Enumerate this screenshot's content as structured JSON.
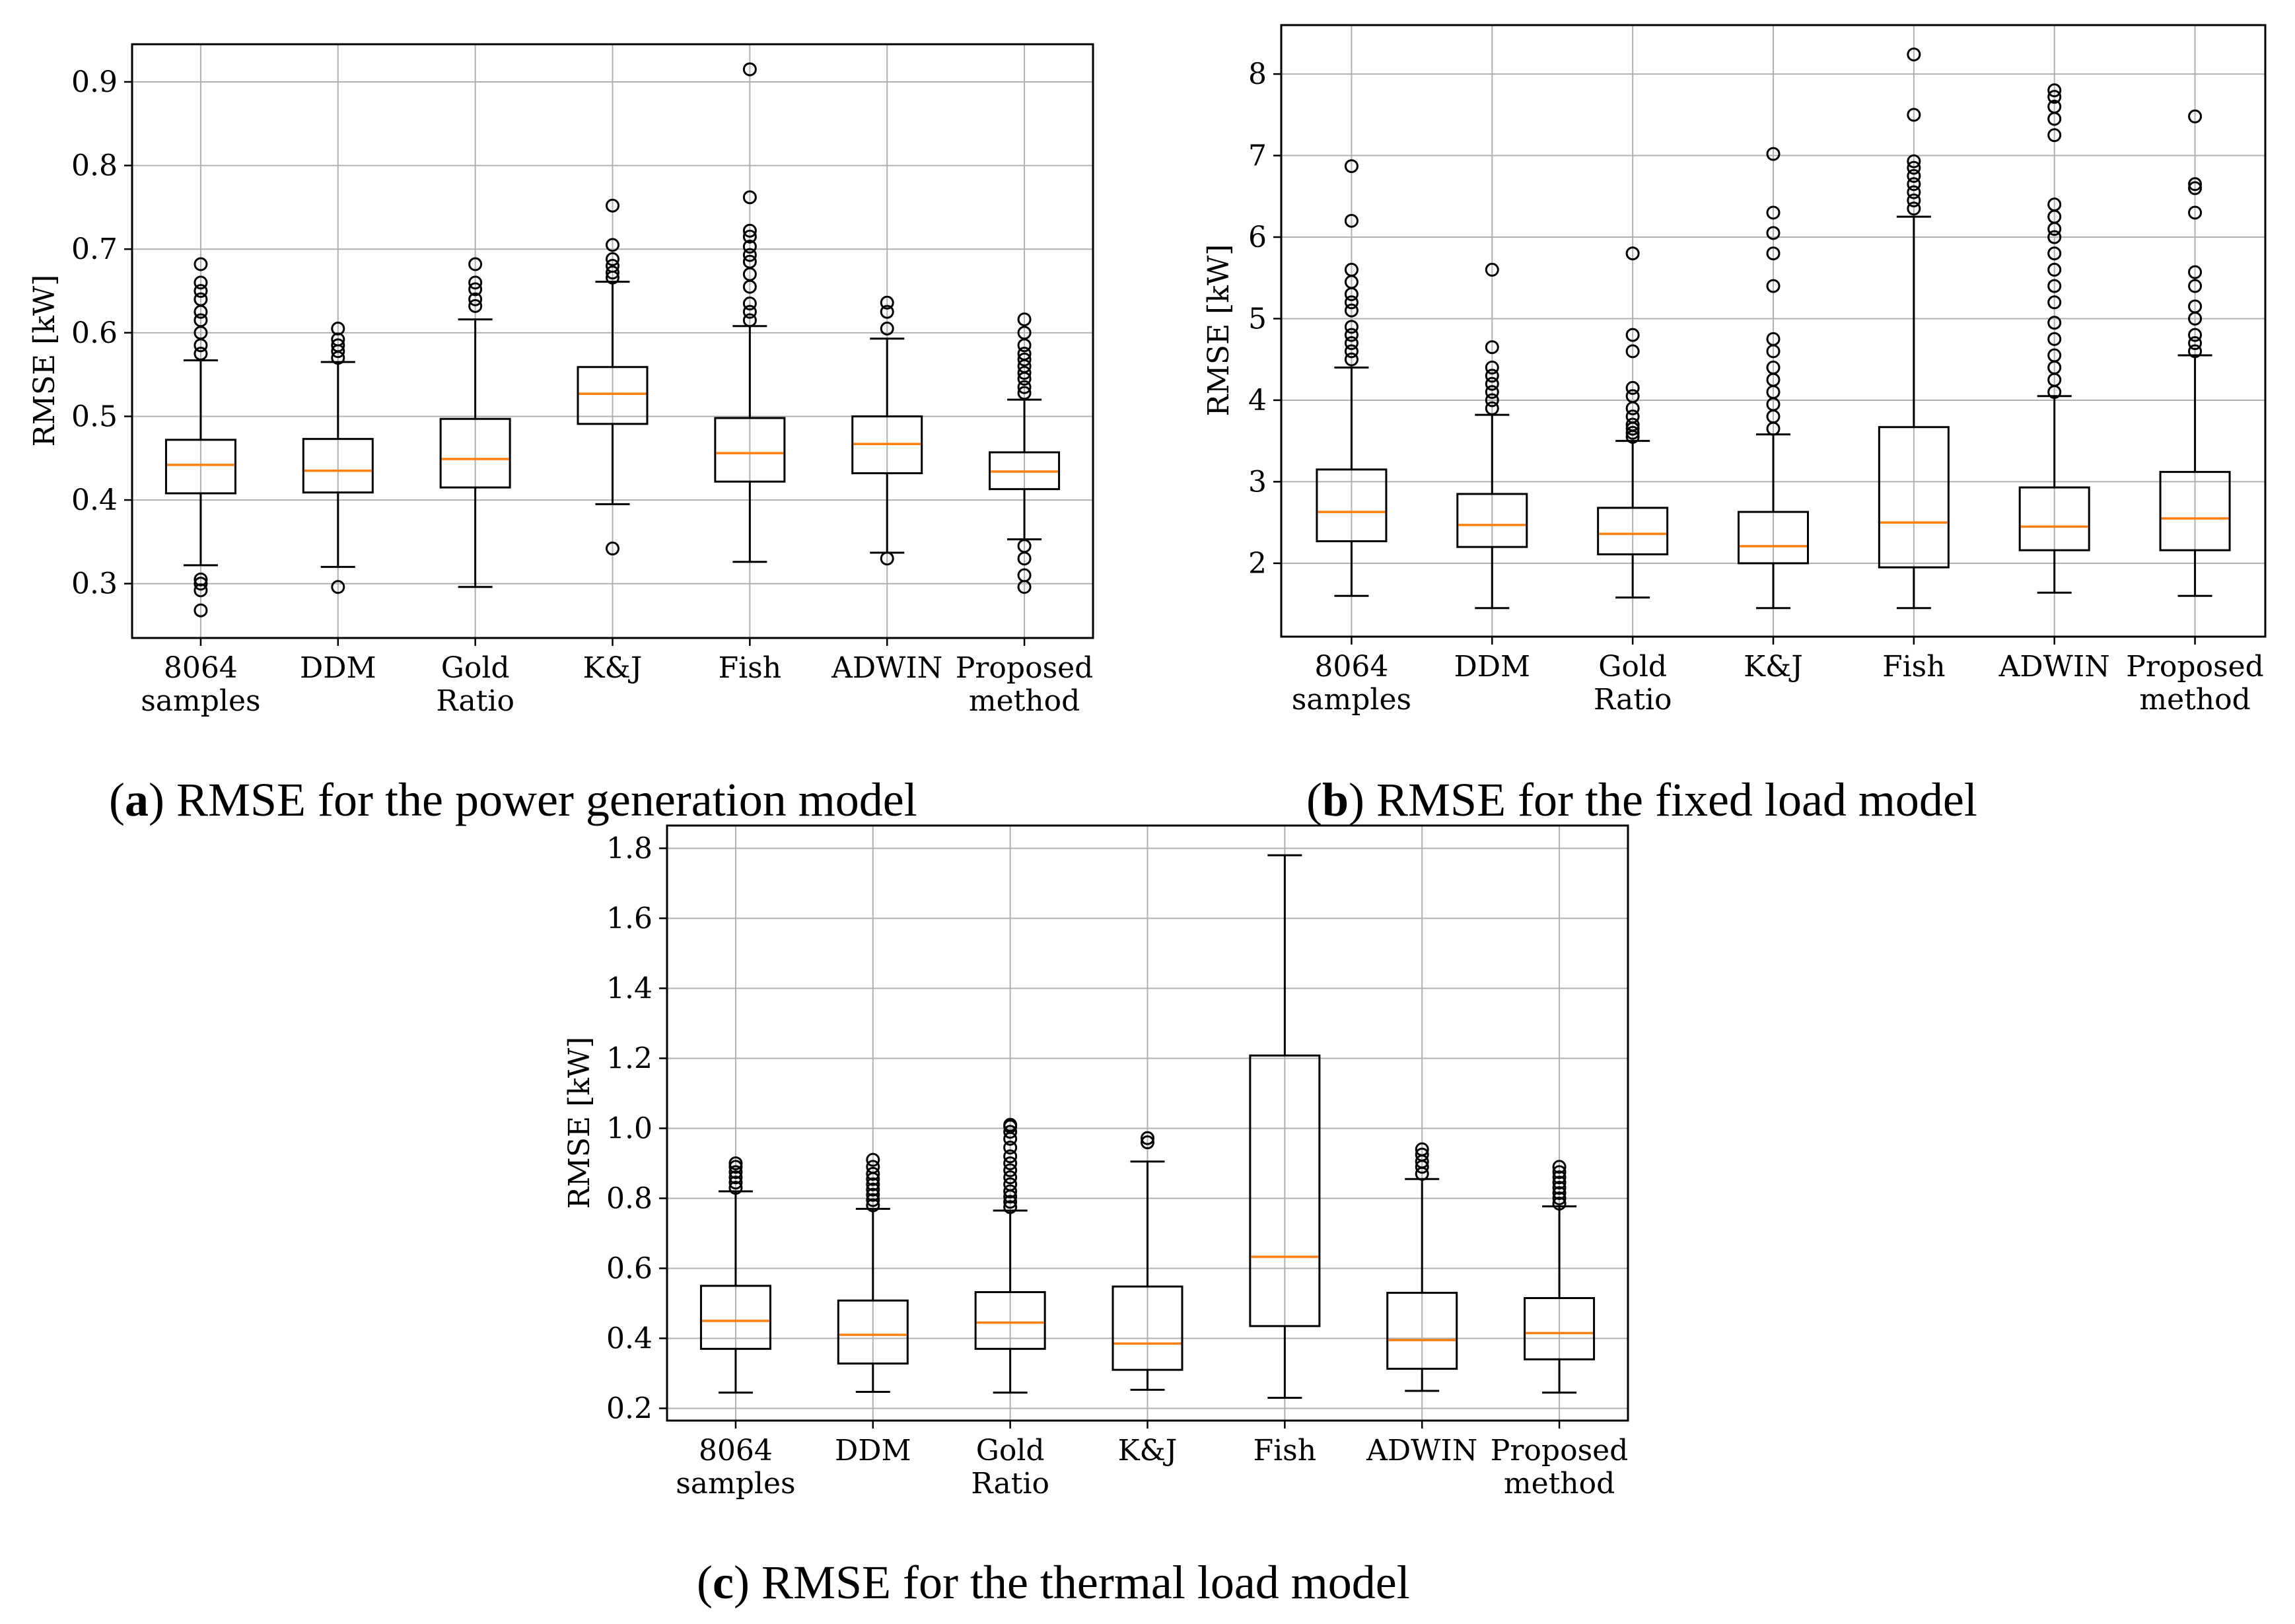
{
  "colors": {
    "median": "#ff7f0e",
    "box": "#000000",
    "grid": "#b0b0b0"
  },
  "chart_data": [
    {
      "type": "box",
      "caption": {
        "letter": "a",
        "text": "RMSE for the power generation model"
      },
      "ylabel": "RMSE [kW]",
      "ylim": [
        0.235,
        0.945
      ],
      "yticks": [
        "0.3",
        "0.4",
        "0.5",
        "0.6",
        "0.7",
        "0.8",
        "0.9"
      ],
      "categories": [
        [
          "8064",
          "samples"
        ],
        [
          "DDM"
        ],
        [
          "Gold",
          "Ratio"
        ],
        [
          "K&J"
        ],
        [
          "Fish"
        ],
        [
          "ADWIN"
        ],
        [
          "Proposed",
          "method"
        ]
      ],
      "series": [
        {
          "whislo": 0.322,
          "q1": 0.408,
          "med": 0.442,
          "q3": 0.472,
          "whishi": 0.567,
          "fliers": [
            0.268,
            0.292,
            0.3,
            0.305,
            0.575,
            0.585,
            0.6,
            0.615,
            0.625,
            0.64,
            0.65,
            0.66,
            0.682
          ]
        },
        {
          "whislo": 0.32,
          "q1": 0.409,
          "med": 0.435,
          "q3": 0.473,
          "whishi": 0.565,
          "fliers": [
            0.296,
            0.57,
            0.578,
            0.585,
            0.592,
            0.605
          ]
        },
        {
          "whislo": 0.296,
          "q1": 0.415,
          "med": 0.449,
          "q3": 0.497,
          "whishi": 0.616,
          "fliers": [
            0.632,
            0.64,
            0.652,
            0.66,
            0.682
          ]
        },
        {
          "whislo": 0.395,
          "q1": 0.491,
          "med": 0.527,
          "q3": 0.559,
          "whishi": 0.661,
          "fliers": [
            0.342,
            0.666,
            0.672,
            0.68,
            0.688,
            0.705,
            0.752
          ]
        },
        {
          "whislo": 0.326,
          "q1": 0.422,
          "med": 0.456,
          "q3": 0.498,
          "whishi": 0.608,
          "fliers": [
            0.615,
            0.625,
            0.635,
            0.655,
            0.67,
            0.685,
            0.693,
            0.703,
            0.715,
            0.722,
            0.762,
            0.915
          ]
        },
        {
          "whislo": 0.337,
          "q1": 0.432,
          "med": 0.467,
          "q3": 0.5,
          "whishi": 0.593,
          "fliers": [
            0.33,
            0.605,
            0.625,
            0.636
          ]
        },
        {
          "whislo": 0.353,
          "q1": 0.413,
          "med": 0.434,
          "q3": 0.457,
          "whishi": 0.52,
          "fliers": [
            0.296,
            0.31,
            0.33,
            0.345,
            0.528,
            0.535,
            0.545,
            0.552,
            0.56,
            0.568,
            0.575,
            0.585,
            0.6,
            0.616
          ]
        }
      ]
    },
    {
      "type": "box",
      "caption": {
        "letter": "b",
        "text": "RMSE for the fixed load model"
      },
      "ylabel": "RMSE [kW]",
      "ylim": [
        1.1,
        8.6
      ],
      "yticks": [
        "2",
        "3",
        "4",
        "5",
        "6",
        "7",
        "8"
      ],
      "categories": [
        [
          "8064",
          "samples"
        ],
        [
          "DDM"
        ],
        [
          "Gold",
          "Ratio"
        ],
        [
          "K&J"
        ],
        [
          "Fish"
        ],
        [
          "ADWIN"
        ],
        [
          "Proposed",
          "method"
        ]
      ],
      "series": [
        {
          "whislo": 1.6,
          "q1": 2.27,
          "med": 2.63,
          "q3": 3.15,
          "whishi": 4.4,
          "fliers": [
            4.5,
            4.6,
            4.7,
            4.8,
            4.9,
            5.1,
            5.2,
            5.3,
            5.45,
            5.6,
            6.2,
            6.87
          ]
        },
        {
          "whislo": 1.45,
          "q1": 2.2,
          "med": 2.47,
          "q3": 2.85,
          "whishi": 3.82,
          "fliers": [
            3.9,
            4.0,
            4.1,
            4.2,
            4.3,
            4.4,
            4.65,
            5.6
          ]
        },
        {
          "whislo": 1.58,
          "q1": 2.11,
          "med": 2.36,
          "q3": 2.68,
          "whishi": 3.5,
          "fliers": [
            3.55,
            3.6,
            3.65,
            3.7,
            3.8,
            3.9,
            4.05,
            4.15,
            4.6,
            4.8,
            5.8
          ]
        },
        {
          "whislo": 1.45,
          "q1": 2.0,
          "med": 2.21,
          "q3": 2.63,
          "whishi": 3.58,
          "fliers": [
            3.65,
            3.8,
            3.95,
            4.1,
            4.25,
            4.4,
            4.6,
            4.75,
            5.4,
            5.8,
            6.05,
            6.3,
            7.02
          ]
        },
        {
          "whislo": 1.45,
          "q1": 1.95,
          "med": 2.5,
          "q3": 3.67,
          "whishi": 6.25,
          "fliers": [
            6.35,
            6.45,
            6.55,
            6.65,
            6.75,
            6.85,
            6.93,
            7.5,
            8.24
          ]
        },
        {
          "whislo": 1.64,
          "q1": 2.16,
          "med": 2.45,
          "q3": 2.93,
          "whishi": 4.05,
          "fliers": [
            4.1,
            4.25,
            4.4,
            4.55,
            4.75,
            4.95,
            5.2,
            5.4,
            5.6,
            5.8,
            6.0,
            6.1,
            6.25,
            6.4,
            7.25,
            7.45,
            7.6,
            7.72,
            7.8
          ]
        },
        {
          "whislo": 1.6,
          "q1": 2.16,
          "med": 2.55,
          "q3": 3.12,
          "whishi": 4.55,
          "fliers": [
            4.6,
            4.7,
            4.8,
            5.0,
            5.15,
            5.4,
            5.57,
            6.3,
            6.6,
            6.65,
            7.48
          ]
        }
      ]
    },
    {
      "type": "box",
      "caption": {
        "letter": "c",
        "text": "RMSE for the thermal load model"
      },
      "ylabel": "RMSE [kW]",
      "ylim": [
        0.165,
        1.865
      ],
      "yticks": [
        "0.2",
        "0.4",
        "0.6",
        "0.8",
        "1.0",
        "1.2",
        "1.4",
        "1.6",
        "1.8"
      ],
      "categories": [
        [
          "8064",
          "samples"
        ],
        [
          "DDM"
        ],
        [
          "Gold",
          "Ratio"
        ],
        [
          "K&J"
        ],
        [
          "Fish"
        ],
        [
          "ADWIN"
        ],
        [
          "Proposed",
          "method"
        ]
      ],
      "series": [
        {
          "whislo": 0.245,
          "q1": 0.37,
          "med": 0.45,
          "q3": 0.55,
          "whishi": 0.82,
          "fliers": [
            0.83,
            0.845,
            0.86,
            0.875,
            0.89,
            0.9
          ]
        },
        {
          "whislo": 0.247,
          "q1": 0.328,
          "med": 0.41,
          "q3": 0.508,
          "whishi": 0.77,
          "fliers": [
            0.78,
            0.795,
            0.81,
            0.825,
            0.84,
            0.855,
            0.87,
            0.89,
            0.91
          ]
        },
        {
          "whislo": 0.245,
          "q1": 0.37,
          "med": 0.445,
          "q3": 0.532,
          "whishi": 0.765,
          "fliers": [
            0.775,
            0.79,
            0.805,
            0.82,
            0.84,
            0.86,
            0.88,
            0.9,
            0.92,
            0.945,
            0.97,
            0.99,
            1.005,
            1.01
          ]
        },
        {
          "whislo": 0.253,
          "q1": 0.31,
          "med": 0.385,
          "q3": 0.548,
          "whishi": 0.905,
          "fliers": [
            0.96,
            0.972
          ]
        },
        {
          "whislo": 0.23,
          "q1": 0.435,
          "med": 0.633,
          "q3": 1.208,
          "whishi": 1.78,
          "fliers": []
        },
        {
          "whislo": 0.25,
          "q1": 0.313,
          "med": 0.395,
          "q3": 0.53,
          "whishi": 0.855,
          "fliers": [
            0.87,
            0.89,
            0.905,
            0.925,
            0.94
          ]
        },
        {
          "whislo": 0.245,
          "q1": 0.34,
          "med": 0.415,
          "q3": 0.515,
          "whishi": 0.777,
          "fliers": [
            0.785,
            0.8,
            0.815,
            0.83,
            0.845,
            0.86,
            0.875,
            0.89
          ]
        }
      ]
    }
  ]
}
